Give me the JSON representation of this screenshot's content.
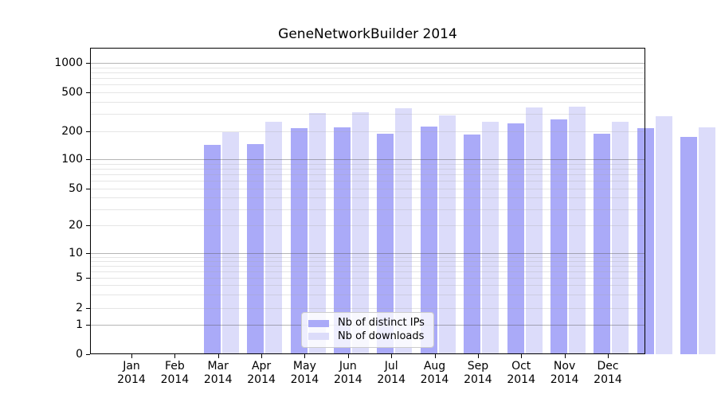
{
  "title": "GeneNetworkBuilder 2014",
  "chart_data": {
    "type": "bar",
    "title": "GeneNetworkBuilder 2014",
    "categories": [
      "Jan 2014",
      "Feb 2014",
      "Mar 2014",
      "Apr 2014",
      "May 2014",
      "Jun 2014",
      "Jul 2014",
      "Aug 2014",
      "Sep 2014",
      "Oct 2014",
      "Nov 2014",
      "Dec 2014"
    ],
    "series": [
      {
        "name": "Nb of distinct IPs",
        "color": "#aaaaf8",
        "values": [
          142,
          146,
          215,
          220,
          190,
          225,
          185,
          240,
          265,
          190,
          215,
          175
        ]
      },
      {
        "name": "Nb of downloads",
        "color": "#dcdcfa",
        "values": [
          196,
          250,
          305,
          315,
          345,
          290,
          250,
          350,
          355,
          250,
          285,
          220
        ]
      }
    ],
    "xlabel": "",
    "ylabel": "",
    "yscale": "symlog",
    "y_ticks": [
      0,
      1,
      2,
      5,
      10,
      20,
      50,
      100,
      200,
      500,
      1000
    ],
    "ylim": [
      0,
      1400
    ],
    "grid": "both",
    "legend_position": "lower center"
  },
  "colors": {
    "background": "#ffffff",
    "spine": "#000000",
    "grid_major": "rgba(90,90,90,0.45)",
    "grid_minor": "rgba(170,170,170,0.30)",
    "legend_bg": "rgba(255,255,255,0.8)",
    "legend_border": "#cccccc",
    "text": "#000000"
  }
}
